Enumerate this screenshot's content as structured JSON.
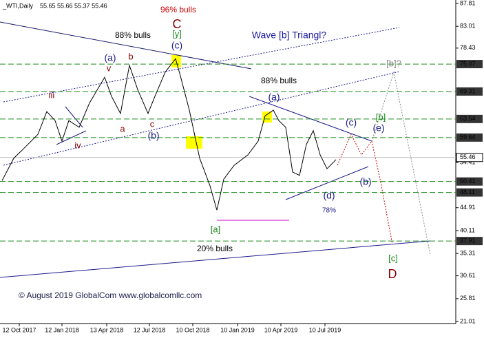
{
  "chart_data": {
    "type": "line",
    "title": "_WTI,Daily",
    "subtitle": "55.65 55.66 55.37 55.46",
    "xlim": [
      0,
      662
    ],
    "ylim": [
      20.58,
      88.53
    ],
    "xticks": [
      {
        "value": 28,
        "label": "12 Oct 2017"
      },
      {
        "value": 90,
        "label": "12 Jan 2018"
      },
      {
        "value": 155,
        "label": "13 Apr 2018"
      },
      {
        "value": 217,
        "label": "12 Jul 2018"
      },
      {
        "value": 280,
        "label": "10 Oct 2018"
      },
      {
        "value": 345,
        "label": "10 Jan 2019"
      },
      {
        "value": 408,
        "label": "10 Apr 2019"
      },
      {
        "value": 472,
        "label": "10 Jul 2019"
      }
    ],
    "yticks": [
      87.81,
      83.01,
      78.43,
      54.41,
      44.91,
      40.11,
      35.31,
      30.61,
      25.81,
      21.01
    ],
    "series": [
      {
        "name": "WTI",
        "color": "#000000",
        "x": [
          3,
          20,
          35,
          55,
          68,
          80,
          90,
          100,
          115,
          130,
          152,
          162,
          175,
          188,
          200,
          215,
          225,
          240,
          255,
          262,
          275,
          290,
          305,
          315,
          325,
          340,
          360,
          375,
          385,
          397,
          405,
          415,
          425,
          435,
          445,
          455,
          465,
          475,
          488
        ],
        "values": [
          50.6,
          55.3,
          57.4,
          60.3,
          65.1,
          63.2,
          58.9,
          63.2,
          61.8,
          66.9,
          72.3,
          68.3,
          64.7,
          74.8,
          69.7,
          64.7,
          68.3,
          73.4,
          76.2,
          72.6,
          65.4,
          55.3,
          49.5,
          44.4,
          50.9,
          53.8,
          56.0,
          58.9,
          64.2,
          65.4,
          63.2,
          61.8,
          52.4,
          51.7,
          58.2,
          61.1,
          56.0,
          53.1,
          55.0
        ]
      }
    ],
    "levels": [
      75.07,
      69.31,
      63.54,
      59.64,
      50.41,
      48.11,
      37.91
    ],
    "level_color": "#1a8a1a",
    "last_price": 55.46,
    "annotations": [
      {
        "text": "96% bulls",
        "color": "#cc0000"
      },
      {
        "text": "C",
        "color": "#8b0000"
      },
      {
        "text": "[y]",
        "color": "#1a8a1a"
      },
      {
        "text": "(c)",
        "color": "#1a1a8a"
      },
      {
        "text": "88% bulls",
        "color": "#000000"
      },
      {
        "text": "Wave [b] Triangl?",
        "color": "#1a1aa0"
      },
      {
        "text": "[b]?",
        "color": "#888888"
      },
      {
        "text": "88% bulls",
        "color": "#000000"
      },
      {
        "text": "(a)",
        "color": "#1a1a8a"
      },
      {
        "text": "v",
        "color": "#8b0000"
      },
      {
        "text": "b",
        "color": "#8b0000"
      },
      {
        "text": "iii",
        "color": "#8b0000"
      },
      {
        "text": "a",
        "color": "#8b0000"
      },
      {
        "text": "c",
        "color": "#8b0000"
      },
      {
        "text": "(b)",
        "color": "#1a1a8a"
      },
      {
        "text": "iv",
        "color": "#8b0000"
      },
      {
        "text": "(a)",
        "color": "#1a1a8a"
      },
      {
        "text": "[a]",
        "color": "#1a8a1a"
      },
      {
        "text": "20% bulls",
        "color": "#000000"
      },
      {
        "text": "(c)",
        "color": "#1a1a8a"
      },
      {
        "text": "[b]",
        "color": "#1a8a1a"
      },
      {
        "text": "(e)",
        "color": "#1a1a8a"
      },
      {
        "text": "(b)",
        "color": "#1a1a8a"
      },
      {
        "text": "(d)",
        "color": "#1a1a8a"
      },
      {
        "text": "78%",
        "color": "#1a1a8a"
      },
      {
        "text": "[c]",
        "color": "#1a8a1a"
      },
      {
        "text": "D",
        "color": "#8b0000"
      },
      {
        "text": "© August 2019 GlobalCom www.globalcomllc.com",
        "color": "#1a1a4a"
      }
    ]
  }
}
